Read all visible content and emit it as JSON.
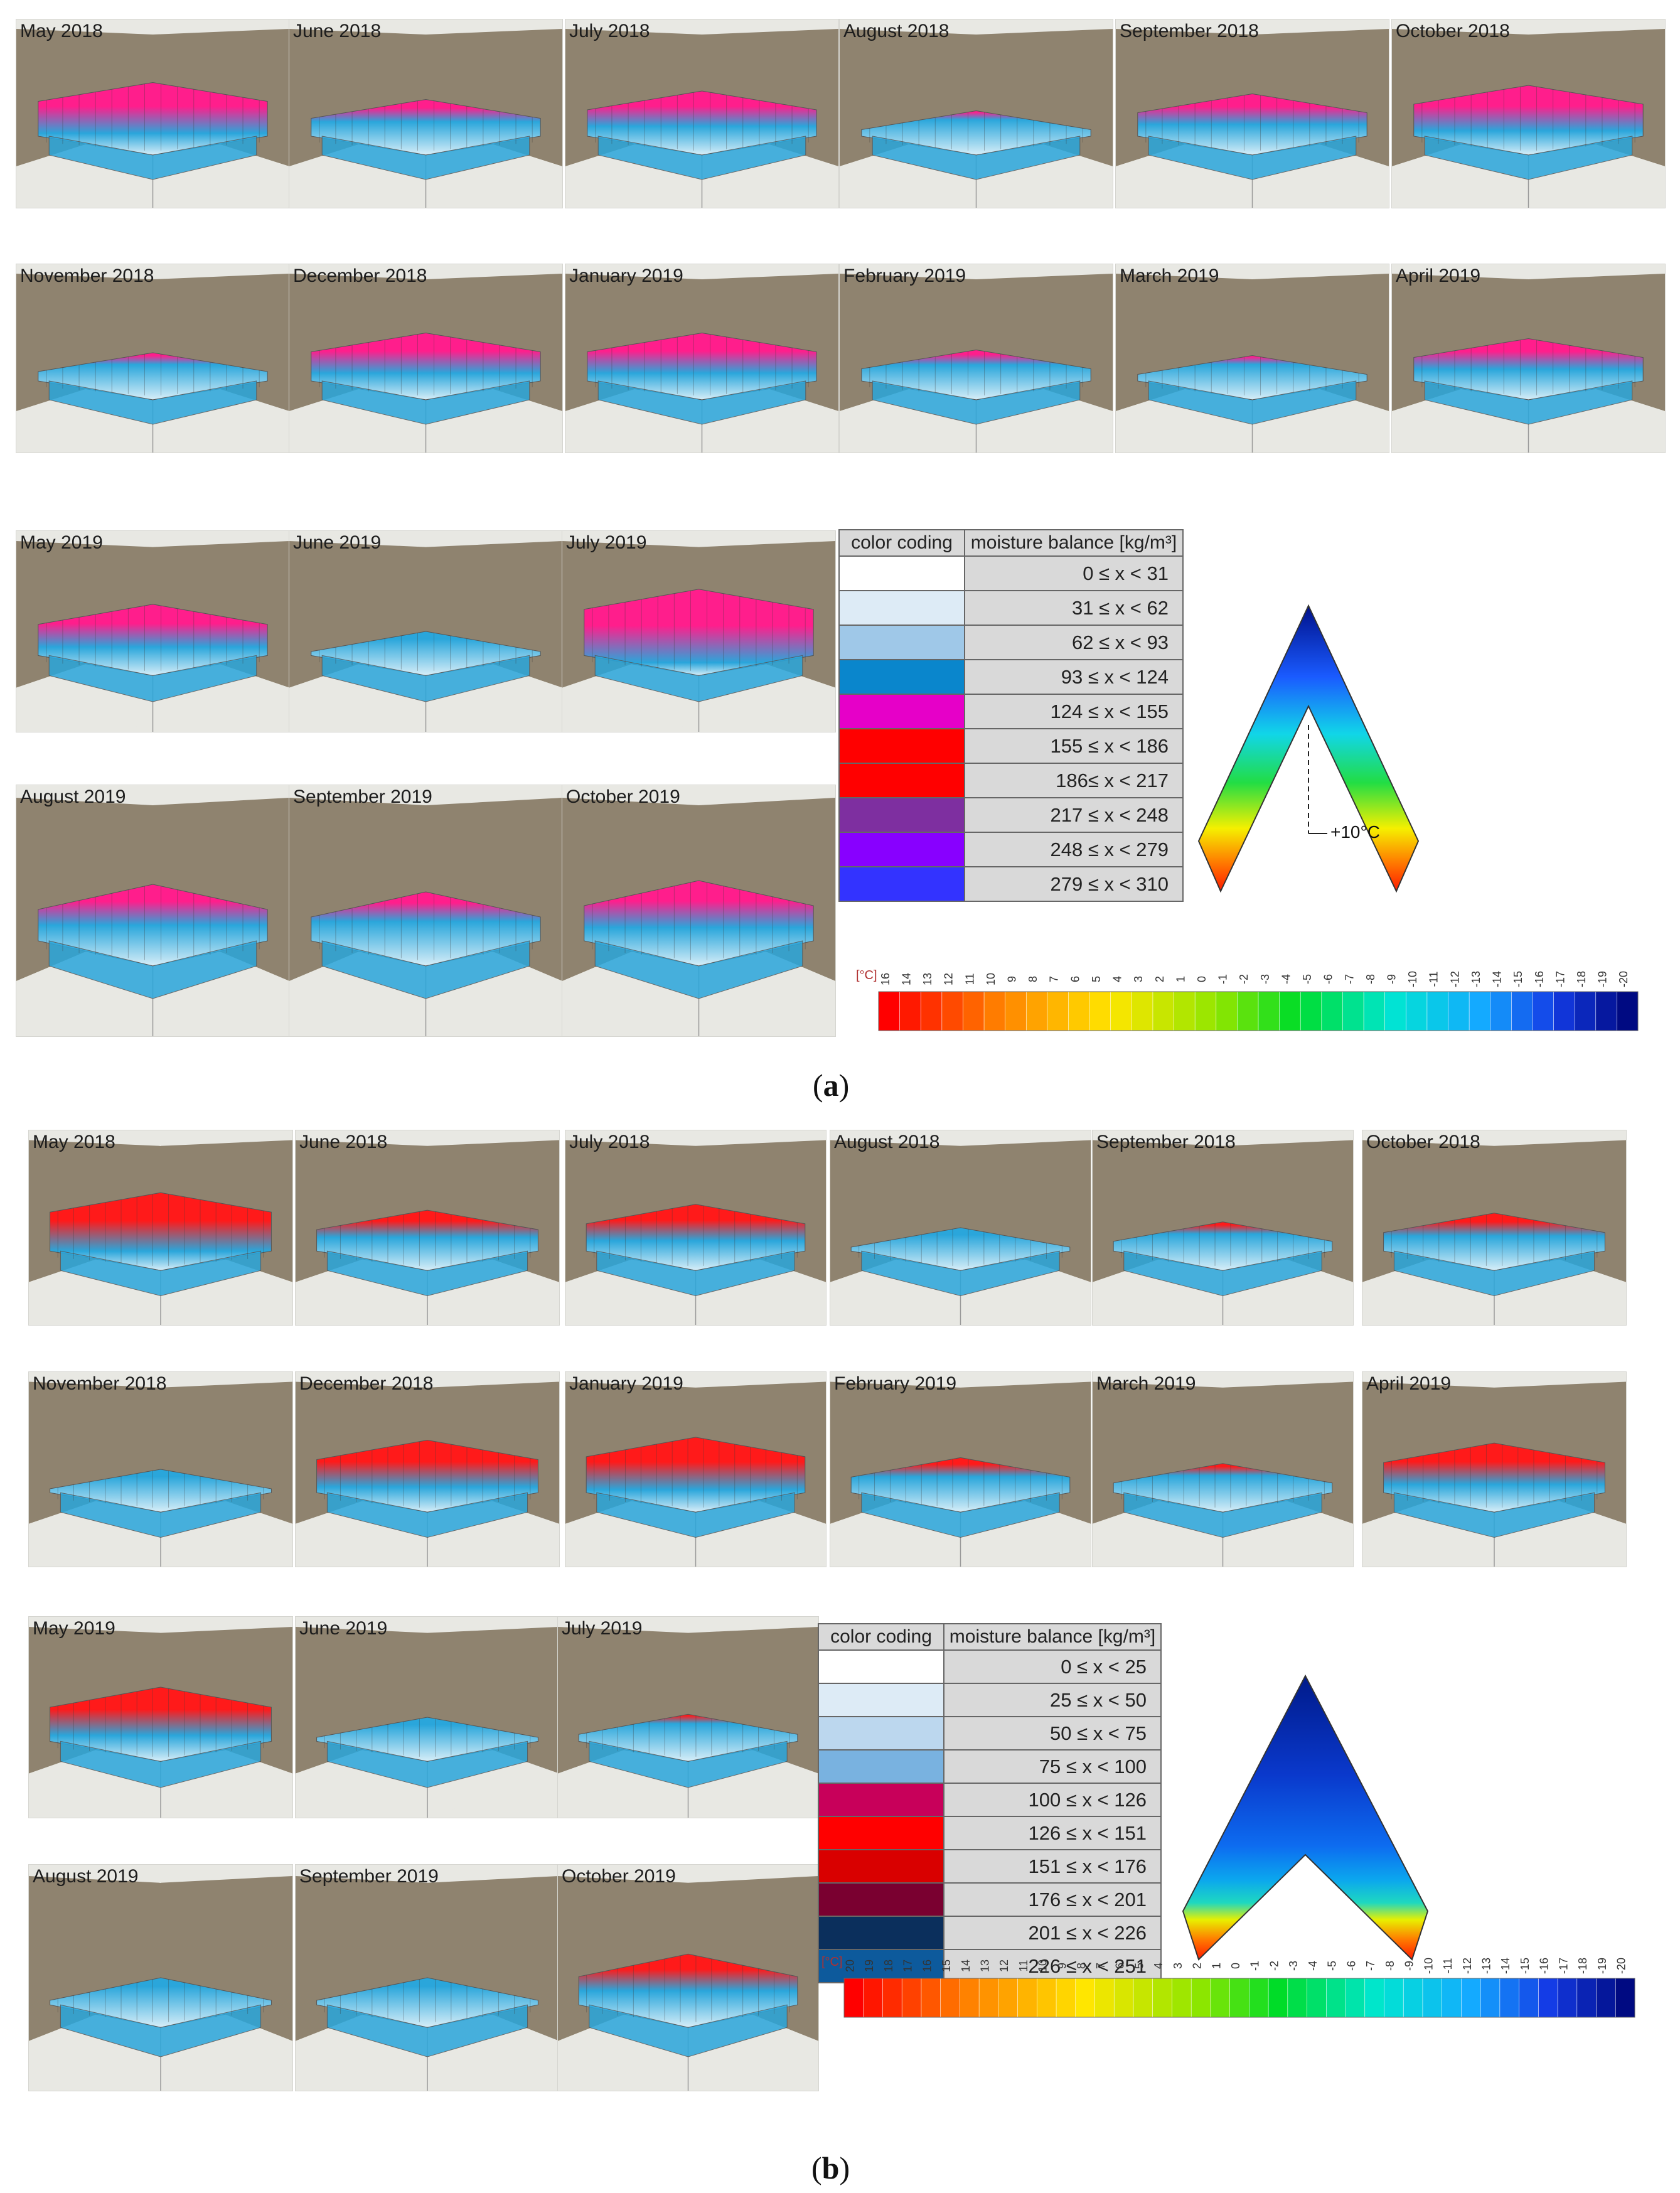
{
  "panel_a": {
    "caption_open": "(",
    "caption_letter": "a",
    "caption_close": ")",
    "months": [
      "May 2018",
      "June 2018",
      "July 2018",
      "August 2018",
      "September 2018",
      "October 2018",
      "November 2018",
      "December 2018",
      "January 2019",
      "February 2019",
      "March 2019",
      "April 2019",
      "May 2019",
      "June 2019",
      "July 2019",
      "August 2019",
      "September 2019",
      "October 2019"
    ],
    "legend": {
      "header_color": "color coding",
      "header_balance": "moisture balance [kg/m³]",
      "rows": [
        {
          "color": "#ffffff",
          "range": "0 ≤ x < 31"
        },
        {
          "color": "#ddebf6",
          "range": "31 ≤ x < 62"
        },
        {
          "color": "#9fc8e8",
          "range": "62 ≤ x < 93"
        },
        {
          "color": "#0a86cc",
          "range": "93 ≤ x < 124"
        },
        {
          "color": "#e600c8",
          "range": "124 ≤ x < 155"
        },
        {
          "color": "#ff0000",
          "range": "155 ≤ x < 186"
        },
        {
          "color": "#ff0000",
          "range": "186≤ x < 217"
        },
        {
          "color": "#7e2fa0",
          "range": "217 ≤ x < 248"
        },
        {
          "color": "#8800ff",
          "range": "248 ≤ x < 279"
        },
        {
          "color": "#3333ff",
          "range": "279 ≤ x < 310"
        }
      ]
    },
    "isotherm_label": "+10°C",
    "scale_unit": "[°C]",
    "scale_ticks": [
      "16",
      "14",
      "13",
      "12",
      "11",
      "10",
      "9",
      "8",
      "7",
      "6",
      "5",
      "4",
      "3",
      "2",
      "1",
      "0",
      "-1",
      "-2",
      "-3",
      "-4",
      "-5",
      "-6",
      "-7",
      "-8",
      "-9",
      "-10",
      "-11",
      "-12",
      "-13",
      "-14",
      "-15",
      "-16",
      "-17",
      "-18",
      "-19",
      "-20"
    ]
  },
  "panel_b": {
    "caption_open": "(",
    "caption_letter": "b",
    "caption_close": ")",
    "months": [
      "May 2018",
      "June 2018",
      "July 2018",
      "August 2018",
      "September 2018",
      "October 2018",
      "November 2018",
      "December 2018",
      "January 2019",
      "February 2019",
      "March 2019",
      "April 2019",
      "May 2019",
      "June 2019",
      "July 2019",
      "August 2019",
      "September 2019",
      "October 2019"
    ],
    "legend": {
      "header_color": "color coding",
      "header_balance": "moisture balance [kg/m³]",
      "rows": [
        {
          "color": "#ffffff",
          "range": "0 ≤ x < 25"
        },
        {
          "color": "#ddebf6",
          "range": "25 ≤ x < 50"
        },
        {
          "color": "#bcd7ee",
          "range": "50 ≤ x < 75"
        },
        {
          "color": "#79b2e0",
          "range": "75 ≤ x < 100"
        },
        {
          "color": "#c8005a",
          "range": "100 ≤ x < 126"
        },
        {
          "color": "#ff0000",
          "range": "126 ≤ x < 151"
        },
        {
          "color": "#d90000",
          "range": "151 ≤ x < 176"
        },
        {
          "color": "#7a0030",
          "range": "176 ≤ x < 201"
        },
        {
          "color": "#0b2f5c",
          "range": "201 ≤ x < 226"
        },
        {
          "color": "#0d5a9c",
          "range": "226 ≤ x < 251"
        }
      ]
    },
    "scale_unit": "[°C]",
    "scale_ticks": [
      "20",
      "19",
      "18",
      "17",
      "16",
      "15",
      "14",
      "13",
      "12",
      "11",
      "10",
      "9",
      "8",
      "7",
      "6",
      "5",
      "4",
      "3",
      "2",
      "1",
      "0",
      "-1",
      "-2",
      "-3",
      "-4",
      "-5",
      "-6",
      "-7",
      "-8",
      "-9",
      "-10",
      "-11",
      "-12",
      "-13",
      "-14",
      "-15",
      "-16",
      "-17",
      "-18",
      "-19",
      "-20"
    ]
  },
  "colors": {
    "wall": "#8f836f",
    "floor": "#e8e8e3",
    "cold": "#2aa6db",
    "pale": "#d7eef8",
    "hot_a": "#ff1e8c",
    "hot_b": "#ff1a1a"
  }
}
